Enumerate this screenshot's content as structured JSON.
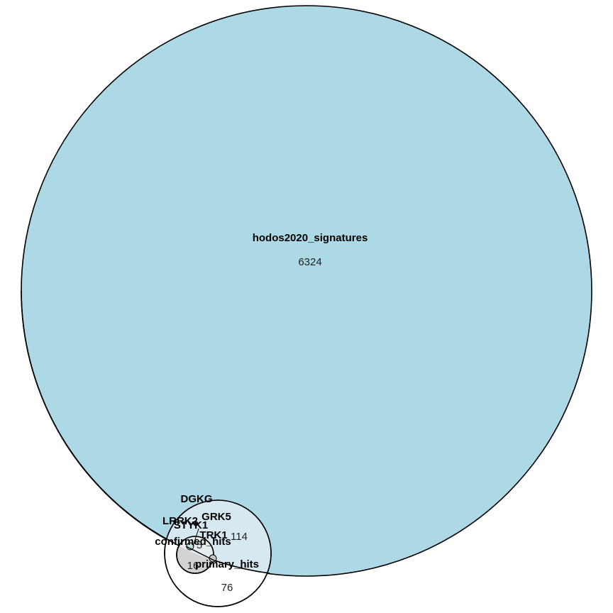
{
  "chart_data": {
    "type": "euler",
    "sets": [
      {
        "id": "hodos",
        "name": "hodos2020_signatures",
        "count": "6324",
        "color": "#add8e6"
      },
      {
        "id": "primary",
        "name": "primary_hits",
        "count": "76",
        "color": "#ffffff"
      },
      {
        "id": "confirmed",
        "name": "confirmed_hits",
        "count": "16",
        "color": "#d3d3d3"
      }
    ],
    "overlaps": [
      {
        "label": "114",
        "sets": [
          "hodos",
          "primary"
        ]
      },
      {
        "label": "5",
        "sets": [
          "hodos",
          "primary",
          "confirmed"
        ]
      }
    ],
    "genes": [
      "DGKG",
      "LRRK2",
      "GRK5",
      "STYK1",
      "TRK1"
    ]
  }
}
